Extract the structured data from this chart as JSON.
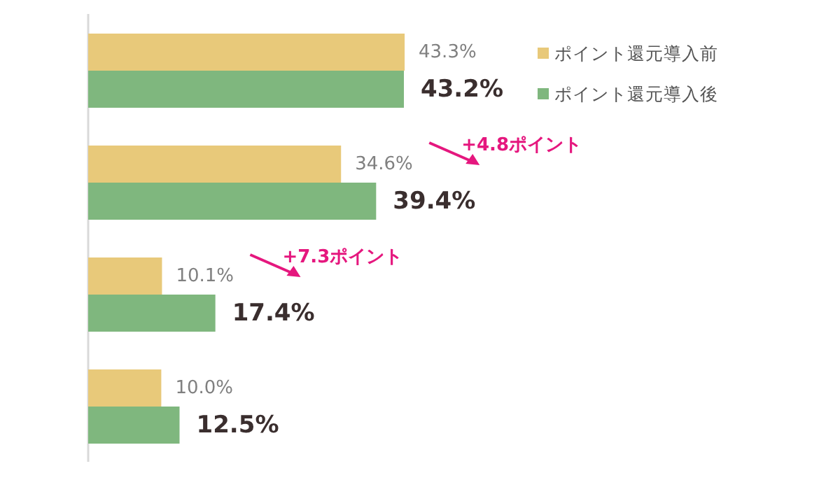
{
  "chart_data": {
    "type": "bar",
    "orientation": "horizontal",
    "categories": [
      null,
      null,
      null,
      null
    ],
    "series": [
      {
        "name": "ポイント還元導入前",
        "color": "#e8c97a",
        "values": [
          43.3,
          34.6,
          10.1,
          10.0
        ],
        "value_labels": [
          "43.3%",
          "34.6%",
          "10.1%",
          "10.0%"
        ]
      },
      {
        "name": "ポイント還元導入後",
        "color": "#7fb77e",
        "values": [
          43.2,
          39.4,
          17.4,
          12.5
        ],
        "value_labels": [
          "43.2%",
          "39.4%",
          "17.4%",
          "12.5%"
        ]
      }
    ],
    "legend": "top right",
    "annotations": [
      "+4.8ポイント",
      "+7.3ポイント"
    ]
  }
}
